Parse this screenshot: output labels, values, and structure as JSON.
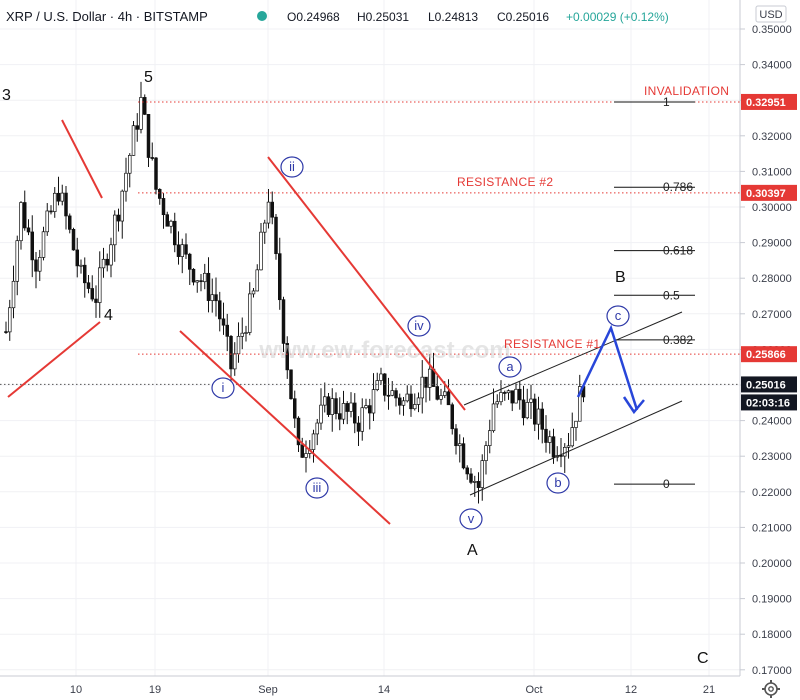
{
  "header": {
    "symbol": "XRP / U.S. Dollar · 4h · BITSTAMP",
    "open": "O0.24968",
    "high": "H0.25031",
    "low": "L0.24813",
    "close": "C0.25016",
    "change": "+0.00029 (+0.12%)",
    "status_color": "#26a69a"
  },
  "currency_button": "USD",
  "watermark": "www.ew-forecast.com",
  "price_axis": {
    "ticks": [
      "0.35000",
      "0.34000",
      "0.33000",
      "0.32000",
      "0.31000",
      "0.30000",
      "0.29000",
      "0.28000",
      "0.27000",
      "0.26000",
      "0.25000",
      "0.24000",
      "0.23000",
      "0.22000",
      "0.21000",
      "0.20000",
      "0.19000",
      "0.18000",
      "0.17000"
    ],
    "badges": [
      {
        "label": "0.32951",
        "color": "#e53935"
      },
      {
        "label": "0.30397",
        "color": "#e53935"
      },
      {
        "label": "0.25866",
        "color": "#e53935"
      },
      {
        "label": "0.25016",
        "color": "#131722"
      },
      {
        "label": "02:03:16",
        "color": "#131722"
      }
    ]
  },
  "time_axis": {
    "ticks": [
      "10",
      "19",
      "Sep",
      "14",
      "Oct",
      "12",
      "21"
    ]
  },
  "fib_levels": [
    {
      "label": "1",
      "value": 0.32951
    },
    {
      "label": "0.786",
      "value": 0.30555
    },
    {
      "label": "0.618",
      "value": 0.28773
    },
    {
      "label": "0.5",
      "value": 0.27521
    },
    {
      "label": "0.382",
      "value": 0.26269
    },
    {
      "label": "0",
      "value": 0.22215
    }
  ],
  "annotations": {
    "invalidation": "INVALIDATION",
    "resistance2": "RESISTANCE #2",
    "resistance1": "RESISTANCE #1"
  },
  "waves": {
    "big": [
      "3",
      "5",
      "4",
      "A",
      "B",
      "C"
    ],
    "small": [
      "i",
      "ii",
      "iii",
      "iv",
      "v",
      "a",
      "b",
      "c"
    ]
  },
  "chart_data": {
    "type": "candlestick",
    "title": "XRP / U.S. Dollar · 4h · BITSTAMP",
    "x_ticks": [
      "10",
      "19",
      "Sep",
      "14",
      "Oct",
      "12",
      "21"
    ],
    "ylim": [
      0.17,
      0.355
    ],
    "price_path": [
      {
        "d": 0,
        "p": 0.265
      },
      {
        "d": 2,
        "p": 0.3
      },
      {
        "d": 4,
        "p": 0.285
      },
      {
        "d": 7,
        "p": 0.305
      },
      {
        "d": 10,
        "p": 0.28
      },
      {
        "d": 12,
        "p": 0.275
      },
      {
        "d": 15,
        "p": 0.3
      },
      {
        "d": 18,
        "p": 0.3295
      },
      {
        "d": 20,
        "p": 0.305
      },
      {
        "d": 24,
        "p": 0.285
      },
      {
        "d": 28,
        "p": 0.274
      },
      {
        "d": 30,
        "p": 0.255
      },
      {
        "d": 33,
        "p": 0.275
      },
      {
        "d": 35,
        "p": 0.3035
      },
      {
        "d": 37,
        "p": 0.265
      },
      {
        "d": 39,
        "p": 0.23
      },
      {
        "d": 43,
        "p": 0.245
      },
      {
        "d": 47,
        "p": 0.24
      },
      {
        "d": 50,
        "p": 0.25
      },
      {
        "d": 53,
        "p": 0.245
      },
      {
        "d": 56,
        "p": 0.252
      },
      {
        "d": 59,
        "p": 0.243
      },
      {
        "d": 61,
        "p": 0.23
      },
      {
        "d": 63,
        "p": 0.2215
      },
      {
        "d": 65,
        "p": 0.245
      },
      {
        "d": 68,
        "p": 0.247
      },
      {
        "d": 71,
        "p": 0.24
      },
      {
        "d": 73,
        "p": 0.233
      },
      {
        "d": 75,
        "p": 0.235
      },
      {
        "d": 77,
        "p": 0.2505
      }
    ],
    "last_price": 0.25016,
    "horizontal_levels": [
      0.32951,
      0.30397,
      0.25866,
      0.25016
    ]
  }
}
